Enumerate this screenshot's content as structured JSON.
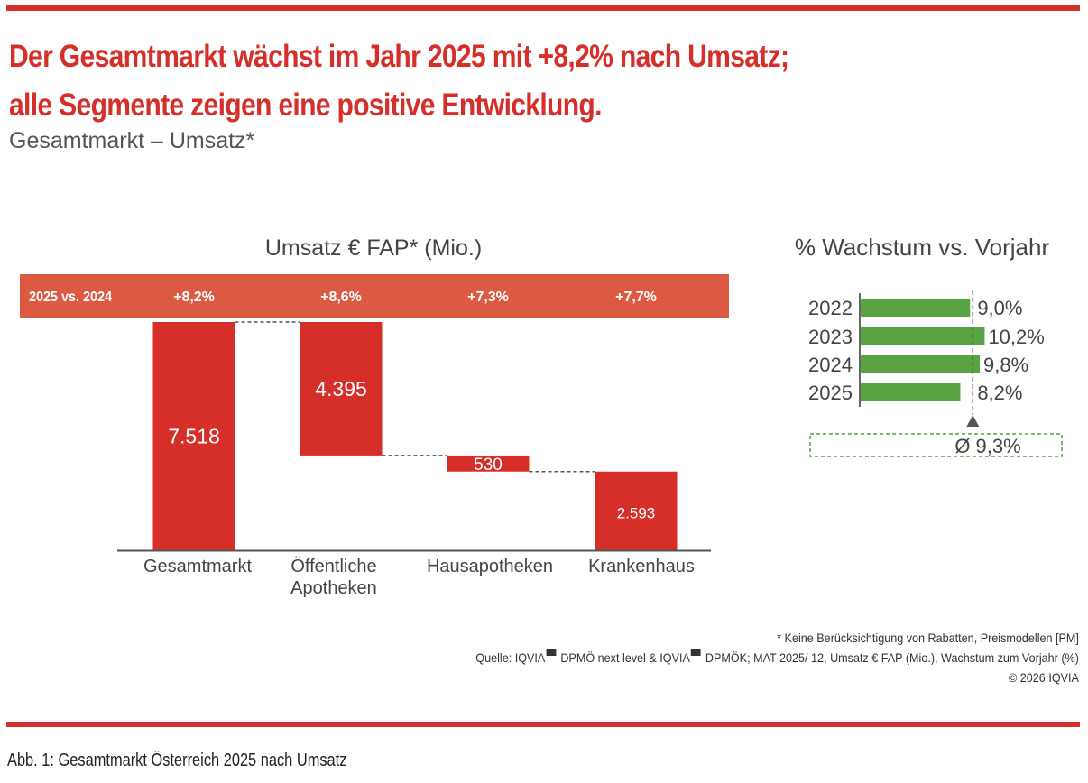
{
  "headline": {
    "line1": "Der Gesamtmarkt wächst im Jahr 2025 mit +8,2% nach Umsatz;",
    "line2": "alle Segmente zeigen eine positive Entwicklung."
  },
  "subtitle": "Gesamtmarkt – Umsatz*",
  "colors": {
    "accent_red": "#d62f2a",
    "growth_band": "#dc5a42",
    "bar_red": "#d62f2a",
    "bar_green": "#5aa343",
    "avg_box": "#5aa343"
  },
  "chart_data": [
    {
      "type": "bar",
      "subtype": "waterfall",
      "title": "Umsatz € FAP* (Mio.)",
      "categories": [
        "Gesamtmarkt",
        "Öffentliche Apotheken",
        "Hausapotheken",
        "Krankenhaus"
      ],
      "category_lines": [
        [
          "Gesamtmarkt"
        ],
        [
          "Öffentliche",
          "Apotheken"
        ],
        [
          "Hausapotheken"
        ],
        [
          "Krankenhaus"
        ]
      ],
      "values": [
        7518,
        4395,
        530,
        2593
      ],
      "value_labels": [
        "7.518",
        "4.395",
        "530",
        "2.593"
      ],
      "units": "Mio. €",
      "growth_row": {
        "label": "2025 vs. 2024",
        "values": [
          "+8,2%",
          "+8,6%",
          "+7,3%",
          "+7,7%"
        ]
      }
    },
    {
      "type": "bar",
      "orientation": "horizontal",
      "title": "% Wachstum vs. Vorjahr",
      "categories": [
        "2022",
        "2023",
        "2024",
        "2025"
      ],
      "values": [
        9.0,
        10.2,
        9.8,
        8.2
      ],
      "value_labels": [
        "9,0%",
        "10,2%",
        "9,8%",
        "8,2%"
      ],
      "xlim": [
        0,
        11
      ],
      "average": 9.3,
      "average_label": "Ø 9,3%"
    }
  ],
  "footnotes": {
    "note": "* Keine Berücksichtigung von Rabatten, Preismodellen [PM]",
    "source_part1": "Quelle: IQVIA",
    "source_part2": " DPMÖ next level & IQVIA",
    "source_part3": " DPMÖK; MAT 2025/ 12, Umsatz € FAP (Mio.), Wachstum zum Vorjahr (%)",
    "copyright": "© 2026 IQVIA"
  },
  "caption": "Abb. 1: Gesamtmarkt Österreich 2025 nach Umsatz"
}
